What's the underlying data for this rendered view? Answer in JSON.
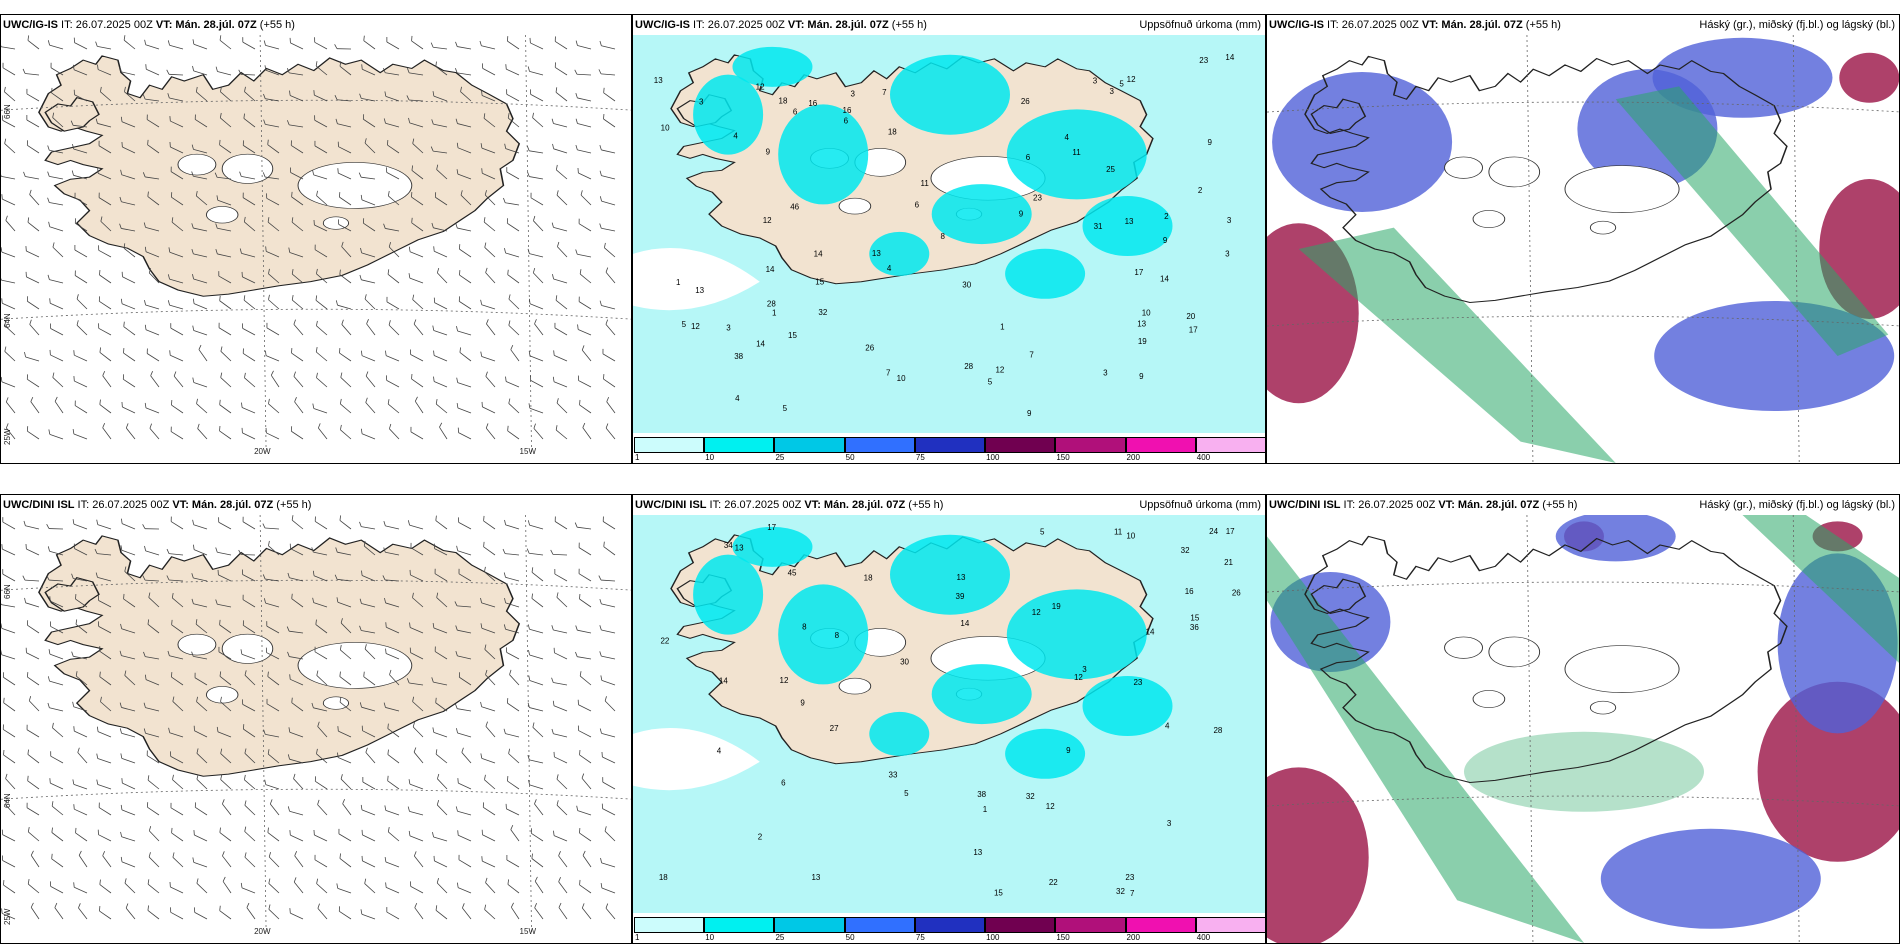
{
  "panels": [
    {
      "model": "UWC/IG-IS",
      "it": " IT: 26.07.2025 00Z ",
      "vt": "VT: Mán. 28.júl. 07Z",
      "lead": " (+55 h)",
      "right": "",
      "type": "wind"
    },
    {
      "model": "UWC/IG-IS",
      "it": " IT: 26.07.2025 00Z ",
      "vt": "VT: Mán. 28.júl. 07Z",
      "lead": " (+55 h)",
      "right": "Uppsöfnuð úrkoma (mm)",
      "type": "precip"
    },
    {
      "model": "UWC/IG-IS",
      "it": " IT: 26.07.2025 00Z ",
      "vt": "VT: Mán. 28.júl. 07Z",
      "lead": " (+55 h)",
      "right": "Háský (gr.), miðský (fj.bl.) og lágský (bl.)",
      "type": "cloud"
    },
    {
      "model": "UWC/DINI ISL",
      "it": " IT: 26.07.2025 00Z ",
      "vt": "VT: Mán. 28.júl. 07Z",
      "lead": " (+55 h)",
      "right": "",
      "type": "wind"
    },
    {
      "model": "UWC/DINI ISL",
      "it": " IT: 26.07.2025 00Z ",
      "vt": "VT: Mán. 28.júl. 07Z",
      "lead": " (+55 h)",
      "right": "Uppsöfnuð úrkoma (mm)",
      "type": "precip"
    },
    {
      "model": "UWC/DINI ISL",
      "it": " IT: 26.07.2025 00Z ",
      "vt": "VT: Mán. 28.júl. 07Z",
      "lead": " (+55 h)",
      "right": "Háský (gr.), miðský (fj.bl.) og lágský (bl.)",
      "type": "cloud"
    }
  ],
  "grid_labels": {
    "lon1": "20W",
    "lon2": "15W",
    "lat_top": "66N",
    "lat_mid": "64N",
    "lat_bottom": "25W"
  },
  "colorbar": {
    "ticks": [
      "1",
      "10",
      "25",
      "50",
      "75",
      "100",
      "150",
      "200",
      "400"
    ],
    "colors": [
      "#ccfcfc",
      "#00f0f0",
      "#00c8e6",
      "#3070ff",
      "#2030c0",
      "#700050",
      "#b0107a",
      "#f010b0",
      "#f8b0f0"
    ]
  },
  "colors": {
    "land": "#f2e3d0",
    "ocean_precip": "#b6f7f7",
    "rain": "#00e8ee",
    "glacier": "#ffffff",
    "high_cloud": "#2aa868",
    "mid_cloud": "#5060d8",
    "low_cloud": "#a02050"
  },
  "precip_values_top": [
    "3",
    "16",
    "10",
    "14",
    "6",
    "9",
    "9",
    "3",
    "6",
    "4",
    "3",
    "17",
    "13",
    "14",
    "12",
    "15",
    "10",
    "12",
    "14",
    "28",
    "20",
    "26",
    "38",
    "18",
    "31",
    "12",
    "13",
    "11",
    "13",
    "17",
    "19",
    "23",
    "25",
    "12",
    "15",
    "16",
    "14",
    "18",
    "23",
    "28",
    "26",
    "46",
    "30",
    "32",
    "13",
    "14",
    "11",
    "7",
    "8",
    "6",
    "9",
    "5",
    "1",
    "7",
    "10",
    "9",
    "5",
    "4",
    "3",
    "2",
    "3",
    "1",
    "3",
    "5",
    "3",
    "6",
    "9",
    "5",
    "4",
    "12",
    "13",
    "9",
    "7",
    "4",
    "3",
    "2",
    "1"
  ],
  "precip_values_bottom": [
    "9",
    "17",
    "22",
    "11",
    "13",
    "15",
    "21",
    "19",
    "18",
    "13",
    "13",
    "12",
    "12",
    "34",
    "17",
    "23",
    "14",
    "24",
    "28",
    "26",
    "45",
    "30",
    "32",
    "33",
    "38",
    "36",
    "32",
    "22",
    "18",
    "12",
    "14",
    "15",
    "14",
    "12",
    "16",
    "13",
    "8",
    "5",
    "4",
    "3",
    "2",
    "1",
    "10",
    "7",
    "6",
    "4",
    "3",
    "5",
    "8",
    "9",
    "39",
    "27",
    "32",
    "23"
  ]
}
